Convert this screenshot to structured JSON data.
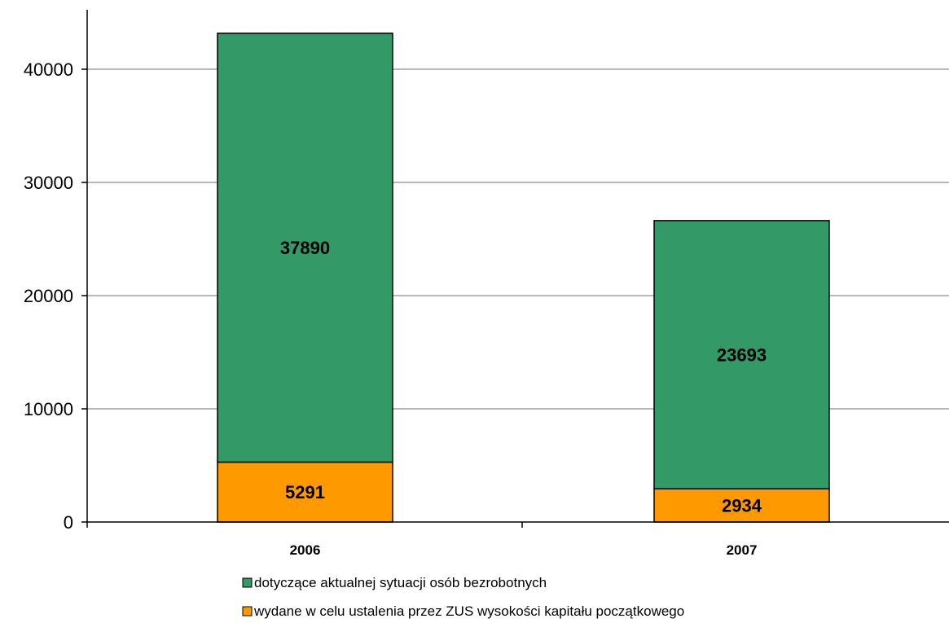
{
  "chart_data": {
    "type": "bar",
    "stacked": true,
    "categories": [
      "2006",
      "2007"
    ],
    "series": [
      {
        "name": "wydane w celu ustalenia przez ZUS wysokości kapitału początkowego",
        "values": [
          5291,
          2934
        ],
        "color": "#FF9900"
      },
      {
        "name": "dotyczące aktualnej sytuacji osób bezrobotnych",
        "values": [
          37890,
          23693
        ],
        "color": "#339966"
      }
    ],
    "yticks": [
      0,
      10000,
      20000,
      30000,
      40000
    ],
    "ylim": [
      0,
      45000
    ],
    "grid": true,
    "legend_position": "bottom",
    "data_labels": true
  }
}
